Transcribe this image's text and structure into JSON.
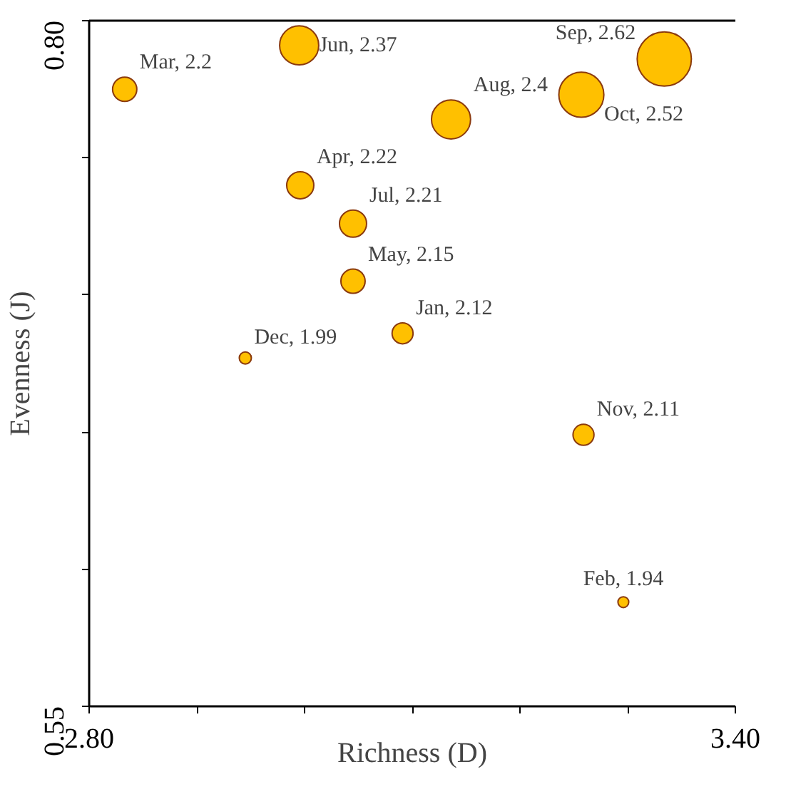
{
  "chart_data": {
    "type": "bubble",
    "xlabel": "Richness (D)",
    "ylabel": "Evenness (J)",
    "x": [
      2.833,
      2.995,
      3.334,
      3.257,
      3.136,
      2.996,
      3.045,
      3.045,
      3.091,
      2.945,
      3.259,
      3.296
    ],
    "series": [
      {
        "color": "#ffc000",
        "values": [
          0.775,
          0.791,
          0.786,
          0.773,
          0.764,
          0.74,
          0.726,
          0.705,
          0.686,
          0.677,
          0.649,
          0.588
        ],
        "sizes": [
          0.2,
          0.52,
          1,
          0.69,
          0.52,
          0.25,
          0.25,
          0.2,
          0.15,
          0.05,
          0.15,
          0.04
        ],
        "value_labels": [
          "Mar, 2.2",
          "Jun, 2.37",
          "Sep, 2.62",
          "Oct, 2.52",
          "Aug, 2.4",
          "Apr, 2.22",
          "Jul, 2.21",
          "May, 2.15",
          "Jan, 2.12",
          "Dec, 1.99",
          "Nov, 2.11",
          "Feb, 1.94"
        ]
      }
    ],
    "xlim": [
      2.8,
      3.4
    ],
    "ylim": [
      0.55,
      0.8
    ],
    "xticks": [
      {
        "value": 2.8,
        "label": "2.80"
      },
      {
        "value": 2.9,
        "label": null
      },
      {
        "value": 3.0,
        "label": null
      },
      {
        "value": 3.1,
        "label": null
      },
      {
        "value": 3.2,
        "label": null
      },
      {
        "value": 3.3,
        "label": null
      },
      {
        "value": 3.4,
        "label": "3.40"
      }
    ],
    "yticks": [
      {
        "value": 0.55,
        "label": "0.55"
      },
      {
        "value": 0.6,
        "label": null
      },
      {
        "value": 0.65,
        "label": null
      },
      {
        "value": 0.7,
        "label": null
      },
      {
        "value": 0.75,
        "label": null
      },
      {
        "value": 0.8,
        "label": "0.80"
      }
    ],
    "grid": false
  }
}
